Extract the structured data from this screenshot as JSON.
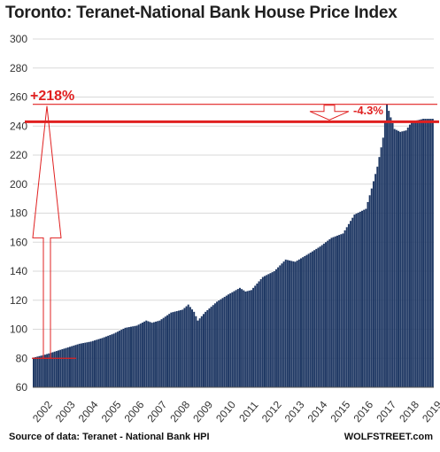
{
  "chart_data": {
    "type": "bar",
    "title": "Toronto:  Teranet-National  Bank House  Price Index",
    "source": "Source of data: Teranet - National Bank HPI",
    "watermark": "WOLFSTREET.com",
    "xlabel": "",
    "ylabel": "",
    "ylim": [
      60,
      300
    ],
    "y_ticks": [
      60,
      80,
      100,
      120,
      140,
      160,
      180,
      200,
      220,
      240,
      260,
      280,
      300
    ],
    "x_tick_labels": [
      "2002",
      "2003",
      "2004",
      "2005",
      "2006",
      "2007",
      "2008",
      "2009",
      "2010",
      "2011",
      "2012",
      "2013",
      "2014",
      "2015",
      "2016",
      "2017",
      "2018",
      "2019"
    ],
    "grid": true,
    "colors": {
      "bar": "#1f3864",
      "annotation": "#e02020",
      "grid": "#d9d9d9"
    },
    "reference_lines": [
      {
        "label": "peak",
        "value": 255
      },
      {
        "label": "current",
        "value": 243
      }
    ],
    "annotations": [
      {
        "text": "+218%",
        "meaning": "increase from 2002 start to peak"
      },
      {
        "text": "-4.3%",
        "meaning": "decline from peak"
      }
    ],
    "anchors": [
      [
        "2002-01",
        80.5
      ],
      [
        "2002-07",
        82.5
      ],
      [
        "2003-01",
        85.0
      ],
      [
        "2003-07",
        87.5
      ],
      [
        "2004-01",
        90.0
      ],
      [
        "2004-07",
        91.5
      ],
      [
        "2005-01",
        94.0
      ],
      [
        "2005-07",
        97.0
      ],
      [
        "2006-01",
        101.0
      ],
      [
        "2006-07",
        102.5
      ],
      [
        "2006-12",
        106.0
      ],
      [
        "2007-03",
        104.5
      ],
      [
        "2007-07",
        106.0
      ],
      [
        "2008-01",
        111.5
      ],
      [
        "2008-07",
        113.5
      ],
      [
        "2008-10",
        117.0
      ],
      [
        "2009-01",
        112.0
      ],
      [
        "2009-03",
        106.0
      ],
      [
        "2009-07",
        112.0
      ],
      [
        "2010-01",
        119.0
      ],
      [
        "2010-07",
        124.0
      ],
      [
        "2011-01",
        128.5
      ],
      [
        "2011-04",
        126.0
      ],
      [
        "2011-07",
        127.0
      ],
      [
        "2012-01",
        136.0
      ],
      [
        "2012-07",
        140.0
      ],
      [
        "2013-01",
        148.0
      ],
      [
        "2013-06",
        146.5
      ],
      [
        "2014-01",
        152.0
      ],
      [
        "2014-07",
        157.0
      ],
      [
        "2015-01",
        163.0
      ],
      [
        "2015-07",
        166.0
      ],
      [
        "2016-01",
        179.0
      ],
      [
        "2016-07",
        183.0
      ],
      [
        "2016-10",
        197.0
      ],
      [
        "2017-01",
        212.0
      ],
      [
        "2017-04",
        232.0
      ],
      [
        "2017-06",
        255.0
      ],
      [
        "2017-08",
        246.0
      ],
      [
        "2017-10",
        238.0
      ],
      [
        "2018-01",
        236.0
      ],
      [
        "2018-04",
        237.0
      ],
      [
        "2018-07",
        243.0
      ],
      [
        "2019-01",
        245.0
      ],
      [
        "2019-06",
        245.0
      ]
    ]
  }
}
